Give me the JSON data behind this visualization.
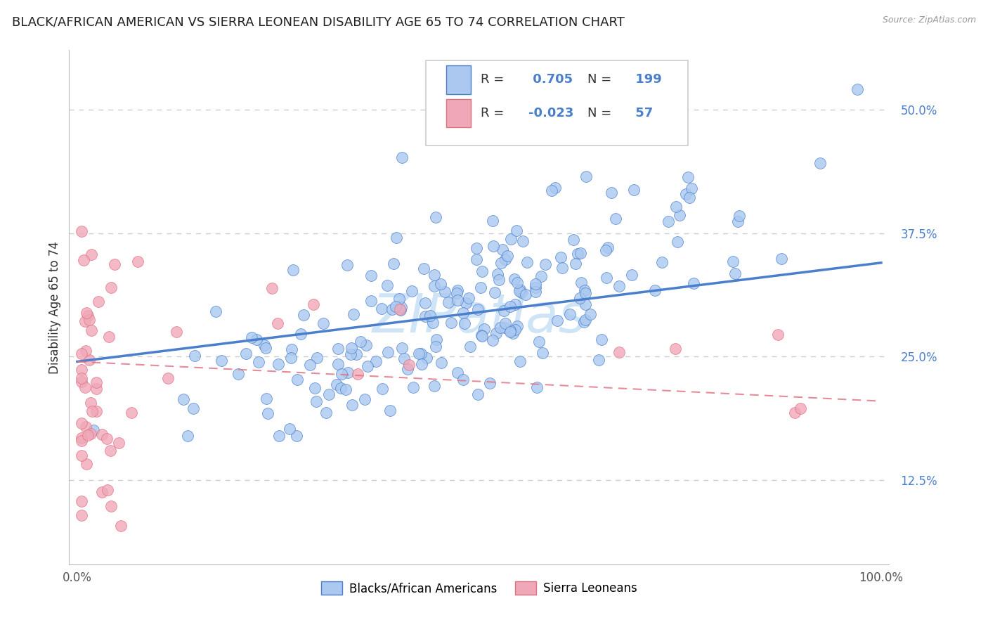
{
  "title": "BLACK/AFRICAN AMERICAN VS SIERRA LEONEAN DISABILITY AGE 65 TO 74 CORRELATION CHART",
  "source": "Source: ZipAtlas.com",
  "ylabel": "Disability Age 65 to 74",
  "xlim": [
    -0.01,
    1.01
  ],
  "ylim": [
    0.04,
    0.56
  ],
  "ytick_vals": [
    0.125,
    0.25,
    0.375,
    0.5
  ],
  "ytick_labels": [
    "12.5%",
    "25.0%",
    "37.5%",
    "50.0%"
  ],
  "xtick_vals": [
    0.0,
    1.0
  ],
  "xtick_labels": [
    "0.0%",
    "100.0%"
  ],
  "blue_R": 0.705,
  "blue_N": 199,
  "pink_R": -0.023,
  "pink_N": 57,
  "blue_color": "#aac8f0",
  "pink_color": "#f0a8b8",
  "blue_line_color": "#4a7fcc",
  "pink_line_color": "#e07080",
  "watermark": "ZIPatlas",
  "watermark_color": "#d0e4f8",
  "legend_blue_label": "Blacks/African Americans",
  "legend_pink_label": "Sierra Leoneans",
  "background_color": "#ffffff",
  "grid_color": "#cccccc",
  "title_fontsize": 13,
  "label_fontsize": 12,
  "tick_fontsize": 12,
  "blue_seed": 42,
  "pink_seed": 77,
  "blue_line_start_y": 0.245,
  "blue_line_end_y": 0.345,
  "pink_line_start_y": 0.245,
  "pink_line_end_y": 0.205
}
